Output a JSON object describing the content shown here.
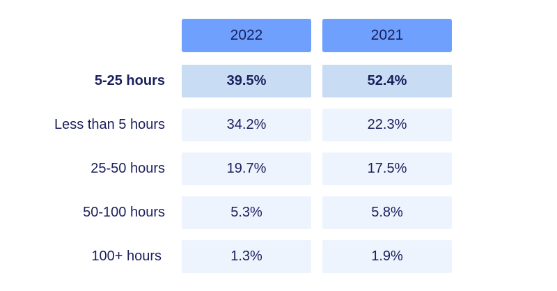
{
  "chart_data": {
    "type": "table",
    "columns": [
      "2022",
      "2021"
    ],
    "rows": [
      {
        "label": "5-25 hours",
        "values": [
          "39.5%",
          "52.4%"
        ],
        "highlight": true
      },
      {
        "label": "Less than 5 hours",
        "values": [
          "34.2%",
          "22.3%"
        ]
      },
      {
        "label": "25-50 hours",
        "values": [
          "19.7%",
          "17.5%"
        ]
      },
      {
        "label": "50-100 hours",
        "values": [
          "5.3%",
          "5.8%"
        ]
      },
      {
        "label": "100+ hours",
        "values": [
          "1.3%",
          "1.9%"
        ]
      }
    ]
  },
  "colors": {
    "header_bg": "#6fa0fd",
    "highlight_bg": "#c8dcf4",
    "cell_bg": "#eef4fd",
    "text": "#1a1f5c"
  }
}
